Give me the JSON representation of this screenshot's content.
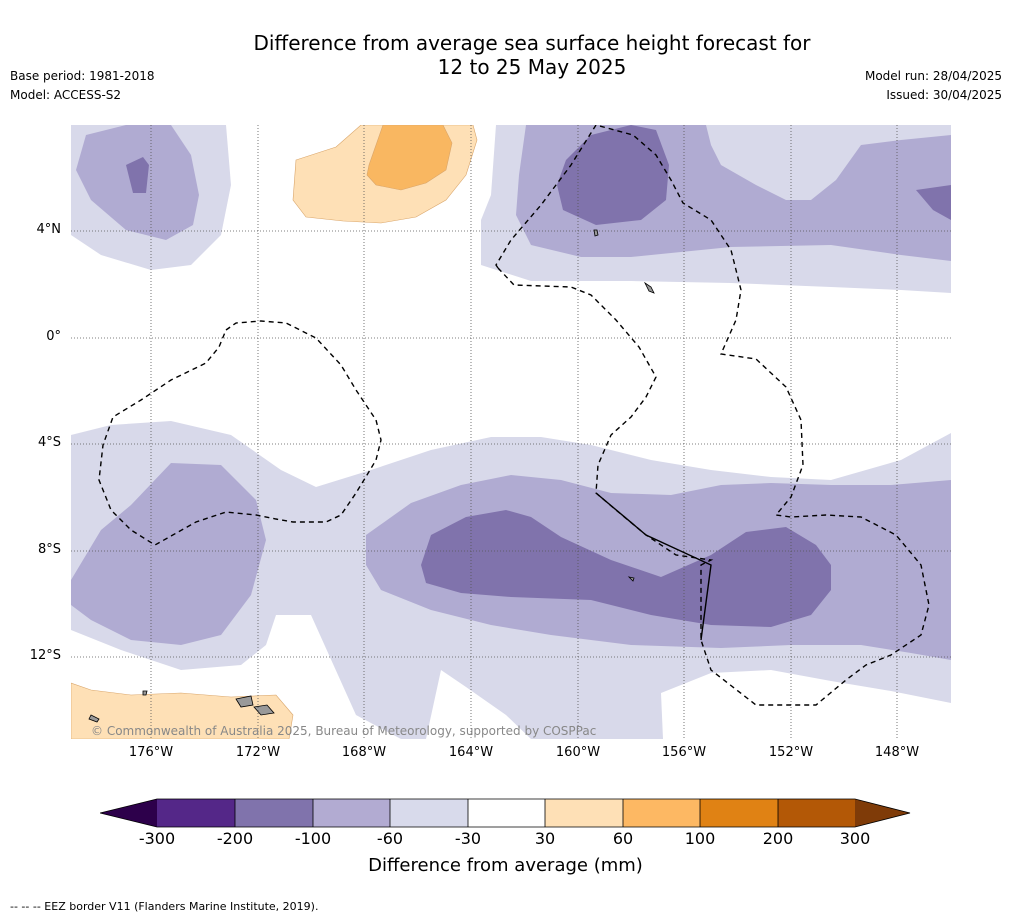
{
  "title": {
    "line1": "Difference from average sea surface height forecast for",
    "line2": "12 to 25 May 2025"
  },
  "meta_left": {
    "base_period": "Base period: 1981-2018",
    "model": "Model: ACCESS-S2"
  },
  "meta_right": {
    "model_run": "Model run: 28/04/2025",
    "issued": "Issued: 30/04/2025"
  },
  "map": {
    "lat_labels": [
      "4°N",
      "0°",
      "4°S",
      "8°S",
      "12°S"
    ],
    "lon_labels": [
      "176°W",
      "172°W",
      "168°W",
      "164°W",
      "160°W",
      "156°W",
      "152°W",
      "148°W"
    ],
    "copyright": "© Commonwealth of Australia 2025, Bureau of Meteorology, supported by COSPPac",
    "colors": {
      "neg_30_60": "#d8d9ea",
      "neg_60_100": "#b0abd2",
      "neg_100_200": "#8073ac",
      "pos_30_60": "#fee0b6",
      "pos_60_100": "#f9b761",
      "land": "#999999"
    }
  },
  "colorbar": {
    "title": "Difference from average (mm)",
    "labels": [
      "-300",
      "-200",
      "-100",
      "-60",
      "-30",
      "30",
      "60",
      "100",
      "200",
      "300"
    ],
    "colors": [
      "#2d004b",
      "#542788",
      "#8073ac",
      "#b2abd2",
      "#d8daeb",
      "#ffffff",
      "#fee0b6",
      "#fdb863",
      "#e08214",
      "#b35806",
      "#7f3b08"
    ]
  },
  "footnote": "--  --  -- EEZ border V11 (Flanders Marine Institute, 2019)."
}
